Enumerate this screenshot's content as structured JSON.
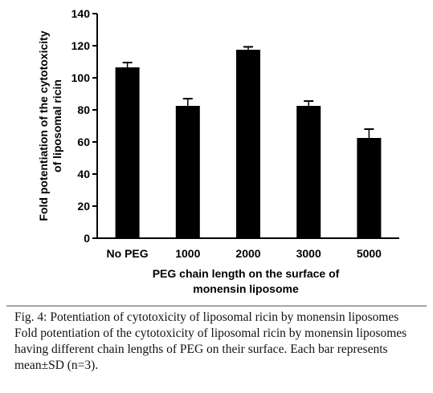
{
  "chart_data": {
    "type": "bar",
    "categories": [
      "No PEG",
      "1000",
      "2000",
      "3000",
      "5000"
    ],
    "values": [
      106.5,
      82.5,
      117.5,
      82.5,
      62.5
    ],
    "errors": [
      3.0,
      4.5,
      1.8,
      3.0,
      5.5
    ],
    "ylabel_lines": [
      "Fold potentiation of the cytotoxicity",
      "of liposomal ricin"
    ],
    "xlabel_lines": [
      "PEG chain length on the surface of",
      "monensin liposome"
    ],
    "ylim": [
      0,
      140
    ],
    "yticks": [
      0,
      20,
      40,
      60,
      80,
      100,
      120,
      140
    ],
    "bar_color": "#000000",
    "grid": false
  },
  "caption": {
    "title": "Fig. 4: Potentiation of cytotoxicity of liposomal ricin by monensin liposomes",
    "body": "Fold potentiation of the cytotoxicity of liposomal ricin by monensin liposomes having different chain lengths of PEG on their surface. Each bar represents mean±SD (n=3)."
  }
}
